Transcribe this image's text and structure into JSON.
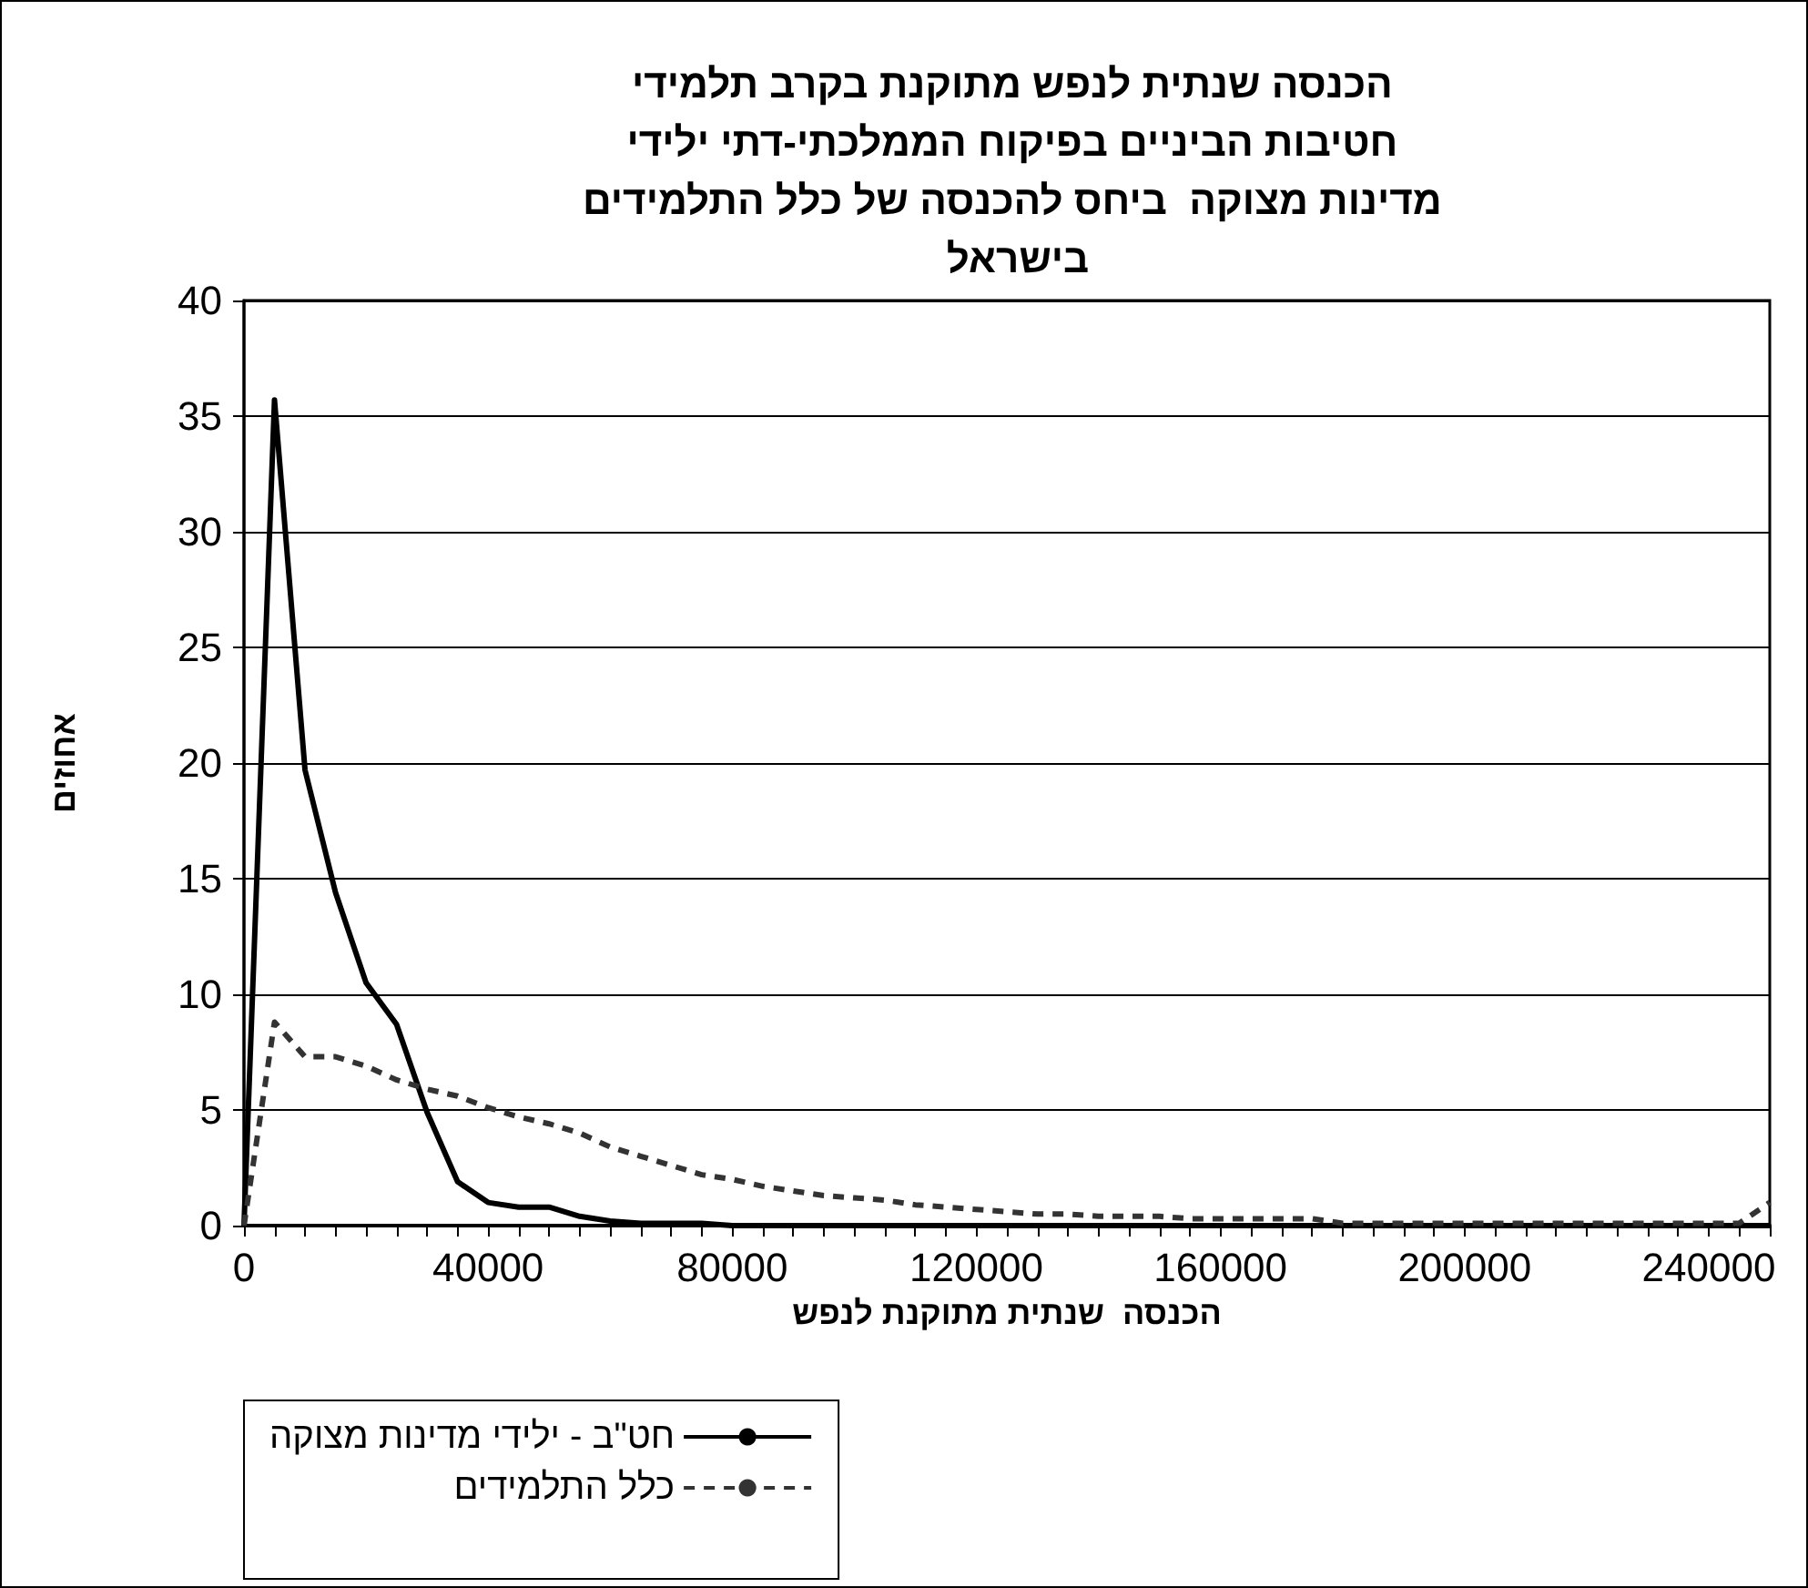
{
  "chart_data": {
    "type": "line",
    "title": "הכנסה שנתית לנפש מתוקנת בקרב תלמידי חטיבות הביניים בפיקוח הממלכתי-דתי ילידי מדינות מצוקה  ביחס להכנסה של כלל התלמידים בישראל",
    "xlabel": "הכנסה  שנתית מתוקנת לנפש",
    "ylabel": "אחוזים",
    "x": [
      0,
      5000,
      10000,
      15000,
      20000,
      25000,
      30000,
      35000,
      40000,
      45000,
      50000,
      55000,
      60000,
      65000,
      70000,
      75000,
      80000,
      85000,
      90000,
      95000,
      100000,
      105000,
      110000,
      115000,
      120000,
      125000,
      130000,
      135000,
      140000,
      145000,
      150000,
      155000,
      160000,
      165000,
      170000,
      175000,
      180000,
      185000,
      190000,
      195000,
      200000,
      205000,
      210000,
      215000,
      220000,
      225000,
      230000,
      235000,
      240000,
      245000,
      250000
    ],
    "series": [
      {
        "name": "חט\"ב - ילידי מדינות מצוקה",
        "color": "#000000",
        "line_style": "solid",
        "values": [
          0,
          35.7,
          19.7,
          14.4,
          10.5,
          8.7,
          4.9,
          1.9,
          1.0,
          0.8,
          0.8,
          0.4,
          0.2,
          0.1,
          0.1,
          0.1,
          0,
          0,
          0,
          0,
          0,
          0,
          0,
          0,
          0,
          0,
          0,
          0,
          0,
          0,
          0,
          0,
          0,
          0,
          0,
          0,
          0,
          0,
          0,
          0,
          0,
          0,
          0,
          0,
          0,
          0,
          0,
          0,
          0,
          0,
          0
        ]
      },
      {
        "name": "כלל התלמידים",
        "color": "#333333",
        "line_style": "dashed",
        "values": [
          0,
          8.8,
          7.3,
          7.3,
          6.9,
          6.3,
          5.9,
          5.6,
          5.1,
          4.7,
          4.4,
          4.0,
          3.4,
          3.0,
          2.6,
          2.2,
          2.0,
          1.7,
          1.5,
          1.3,
          1.2,
          1.1,
          0.9,
          0.8,
          0.7,
          0.6,
          0.5,
          0.5,
          0.4,
          0.4,
          0.4,
          0.3,
          0.3,
          0.3,
          0.3,
          0.3,
          0.1,
          0.1,
          0.1,
          0.1,
          0.1,
          0.1,
          0.1,
          0.1,
          0.1,
          0.1,
          0.1,
          0.1,
          0.1,
          0.1,
          1.0
        ]
      }
    ],
    "xlim": [
      0,
      250000
    ],
    "xticks": [
      0,
      {
        "value": 5000,
        "label": null
      },
      {
        "value": 10000,
        "label": null
      },
      {
        "value": 15000,
        "label": null
      },
      {
        "value": 20000,
        "label": null
      },
      {
        "value": 25000,
        "label": null
      },
      {
        "value": 30000,
        "label": null
      },
      {
        "value": 35000,
        "label": null
      },
      40000,
      {
        "value": 45000,
        "label": null
      },
      {
        "value": 50000,
        "label": null
      },
      {
        "value": 55000,
        "label": null
      },
      {
        "value": 60000,
        "label": null
      },
      {
        "value": 65000,
        "label": null
      },
      {
        "value": 70000,
        "label": null
      },
      {
        "value": 75000,
        "label": null
      },
      80000,
      {
        "value": 85000,
        "label": null
      },
      {
        "value": 90000,
        "label": null
      },
      {
        "value": 95000,
        "label": null
      },
      {
        "value": 100000,
        "label": null
      },
      {
        "value": 105000,
        "label": null
      },
      {
        "value": 110000,
        "label": null
      },
      {
        "value": 115000,
        "label": null
      },
      120000,
      {
        "value": 125000,
        "label": null
      },
      {
        "value": 130000,
        "label": null
      },
      {
        "value": 135000,
        "label": null
      },
      {
        "value": 140000,
        "label": null
      },
      {
        "value": 145000,
        "label": null
      },
      {
        "value": 150000,
        "label": null
      },
      {
        "value": 155000,
        "label": null
      },
      160000,
      {
        "value": 165000,
        "label": null
      },
      {
        "value": 170000,
        "label": null
      },
      {
        "value": 175000,
        "label": null
      },
      {
        "value": 180000,
        "label": null
      },
      {
        "value": 185000,
        "label": null
      },
      {
        "value": 190000,
        "label": null
      },
      {
        "value": 195000,
        "label": null
      },
      200000,
      {
        "value": 205000,
        "label": null
      },
      {
        "value": 210000,
        "label": null
      },
      {
        "value": 215000,
        "label": null
      },
      {
        "value": 220000,
        "label": null
      },
      {
        "value": 225000,
        "label": null
      },
      {
        "value": 230000,
        "label": null
      },
      {
        "value": 235000,
        "label": null
      },
      240000,
      {
        "value": 245000,
        "label": null
      },
      {
        "value": 250000,
        "label": null
      }
    ],
    "ylim": [
      0,
      40
    ],
    "yticks": [
      0,
      5,
      10,
      15,
      20,
      25,
      30,
      35,
      40
    ],
    "grid": "y",
    "legend": "bottom left",
    "marker": "none"
  }
}
